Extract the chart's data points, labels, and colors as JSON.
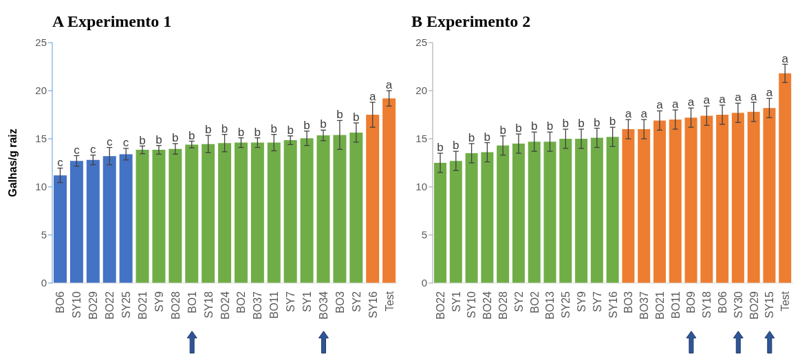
{
  "chart_data": [
    {
      "type": "bar",
      "title": "A Experimento 1",
      "ylabel": "Galhas/g raiz",
      "categories": [
        "BO6",
        "SY10",
        "BO29",
        "BO22",
        "SY25",
        "BO21",
        "SY9",
        "BO28",
        "BO1",
        "SY18",
        "BO24",
        "BO2",
        "BO37",
        "BO11",
        "SY7",
        "SY1",
        "BO34",
        "BO3",
        "SY2",
        "SY16",
        "Test"
      ],
      "values": [
        11.2,
        12.7,
        12.8,
        13.2,
        13.4,
        13.85,
        13.85,
        13.95,
        14.4,
        14.45,
        14.55,
        14.6,
        14.6,
        14.6,
        14.85,
        15.05,
        15.35,
        15.4,
        15.65,
        17.5,
        19.2
      ],
      "errors": [
        0.75,
        0.55,
        0.5,
        0.9,
        0.6,
        0.4,
        0.45,
        0.55,
        0.35,
        0.9,
        0.9,
        0.5,
        0.5,
        0.85,
        0.45,
        0.75,
        0.55,
        1.5,
        1.0,
        1.3,
        0.8
      ],
      "value_labels": [
        "c",
        "c",
        "c",
        "c",
        "c",
        "b",
        "b",
        "b",
        "b",
        "b",
        "b",
        "b",
        "b",
        "b",
        "b",
        "b",
        "b",
        "b",
        "b",
        "a",
        "a"
      ],
      "colors": [
        "#4472c4",
        "#4472c4",
        "#4472c4",
        "#4472c4",
        "#4472c4",
        "#70ad47",
        "#70ad47",
        "#70ad47",
        "#70ad47",
        "#70ad47",
        "#70ad47",
        "#70ad47",
        "#70ad47",
        "#70ad47",
        "#70ad47",
        "#70ad47",
        "#70ad47",
        "#70ad47",
        "#70ad47",
        "#ed7d31",
        "#ed7d31"
      ],
      "ylim": [
        0,
        25
      ],
      "yticks": [
        0,
        5,
        10,
        15,
        20,
        25
      ],
      "grid": false,
      "legend": false
    },
    {
      "type": "bar",
      "title": "B Experimento 2",
      "categories": [
        "BO22",
        "SY1",
        "SY10",
        "BO24",
        "BO28",
        "SY2",
        "BO2",
        "BO13",
        "SY25",
        "SY9",
        "SY7",
        "SY16",
        "BO3",
        "BO37",
        "BO21",
        "BO11",
        "BO9",
        "SY18",
        "BO6",
        "SY30",
        "BO29",
        "SY15",
        "Test"
      ],
      "values": [
        12.5,
        12.7,
        13.5,
        13.6,
        14.3,
        14.5,
        14.7,
        14.7,
        15.0,
        15.0,
        15.1,
        15.2,
        16.0,
        16.0,
        16.9,
        17.0,
        17.2,
        17.4,
        17.5,
        17.7,
        17.8,
        18.2,
        21.8
      ],
      "errors": [
        1.0,
        1.0,
        1.0,
        1.0,
        1.0,
        1.0,
        1.0,
        1.0,
        1.0,
        1.0,
        1.0,
        1.0,
        1.0,
        1.0,
        1.0,
        1.0,
        1.0,
        1.0,
        1.0,
        1.0,
        1.0,
        1.0,
        0.95
      ],
      "value_labels": [
        "b",
        "b",
        "b",
        "b",
        "b",
        "b",
        "b",
        "b",
        "b",
        "b",
        "b",
        "b",
        "a",
        "a",
        "a",
        "a",
        "a",
        "a",
        "a",
        "a",
        "a",
        "a",
        "a"
      ],
      "colors": [
        "#70ad47",
        "#70ad47",
        "#70ad47",
        "#70ad47",
        "#70ad47",
        "#70ad47",
        "#70ad47",
        "#70ad47",
        "#70ad47",
        "#70ad47",
        "#70ad47",
        "#70ad47",
        "#ed7d31",
        "#ed7d31",
        "#ed7d31",
        "#ed7d31",
        "#ed7d31",
        "#ed7d31",
        "#ed7d31",
        "#ed7d31",
        "#ed7d31",
        "#ed7d31",
        "#ed7d31"
      ],
      "ylim": [
        0,
        25
      ],
      "yticks": [
        0,
        5,
        10,
        15,
        20,
        25
      ],
      "grid": false,
      "legend": false
    }
  ]
}
